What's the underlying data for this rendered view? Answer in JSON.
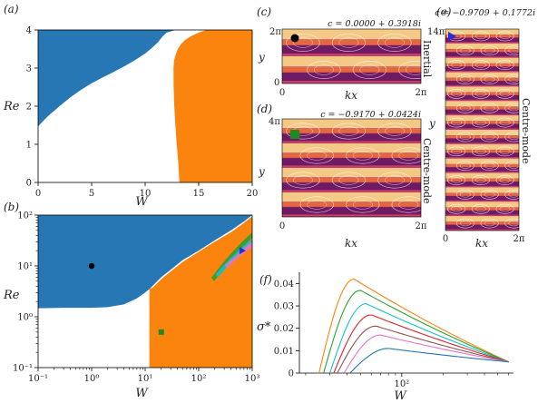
{
  "chart_data": [
    {
      "panel": "(a)",
      "type": "area",
      "xlabel": "W",
      "ylabel": "Re",
      "xlim": [
        0,
        20
      ],
      "ylim": [
        0,
        4
      ],
      "xticks": [
        "0",
        "5",
        "10",
        "15",
        "20"
      ],
      "yticks": [
        "0",
        "1",
        "2",
        "3",
        "4"
      ],
      "colors": {
        "region_blue": "#2677b4",
        "region_orange": "#fb840f",
        "stable": "#ffffff"
      },
      "blue_boundary": {
        "W": [
          0,
          0.5,
          1,
          2,
          3,
          4,
          5,
          6,
          7,
          8,
          9,
          10,
          10.6,
          11.2,
          11.6,
          12.0,
          12.8
        ],
        "Re": [
          1.47,
          1.62,
          1.76,
          2.0,
          2.23,
          2.43,
          2.6,
          2.75,
          2.89,
          3.04,
          3.2,
          3.38,
          3.52,
          3.68,
          3.82,
          3.93,
          4.0
        ]
      },
      "orange_boundary": {
        "W": [
          13.2,
          13.1,
          12.95,
          12.82,
          12.72,
          12.66,
          12.65,
          12.7,
          12.85,
          13.05,
          13.35,
          13.75,
          14.3,
          15.0,
          15.7
        ],
        "Re": [
          0,
          0.5,
          1.0,
          1.5,
          2.0,
          2.5,
          3.0,
          3.2,
          3.35,
          3.5,
          3.63,
          3.74,
          3.84,
          3.93,
          4.0
        ]
      }
    },
    {
      "panel": "(b)",
      "type": "area",
      "xlabel": "W",
      "ylabel": "Re",
      "xscale": "log",
      "yscale": "log",
      "xlim": [
        0.1,
        1000
      ],
      "ylim": [
        0.1,
        100
      ],
      "xticks": [
        "10⁻¹",
        "10⁰",
        "10¹",
        "10²",
        "10³"
      ],
      "yticks": [
        "10⁻¹",
        "10⁰",
        "10¹",
        "10²"
      ],
      "blue_boundary": {
        "W": [
          0.1,
          0.3,
          1,
          2,
          4,
          7,
          10,
          12,
          20,
          50,
          100,
          200,
          400,
          700,
          1000
        ],
        "Re": [
          1.47,
          1.5,
          1.5,
          1.55,
          1.75,
          2.3,
          3.0,
          3.5,
          6,
          13,
          20,
          32,
          50,
          75,
          100
        ]
      },
      "orange_boundary_W": 12.0,
      "orange_top_boundary": {
        "W": [
          12.0,
          14,
          20,
          50,
          100,
          200,
          400,
          700,
          1000
        ],
        "Re": [
          3.5,
          3.8,
          5.5,
          12,
          19,
          30,
          46,
          70,
          95
        ]
      },
      "markers": [
        {
          "name": "inertial-mode-point",
          "W": 1,
          "Re": 10,
          "shape": "circle",
          "color": "#000000"
        },
        {
          "name": "centre-mode-point-d",
          "W": 20,
          "Re": 0.5,
          "shape": "square",
          "color": "#1f8a1f"
        },
        {
          "name": "centre-mode-point-e",
          "W": 650,
          "Re": 20,
          "shape": "triangle",
          "color": "#2b2bd9"
        }
      ]
    },
    {
      "panel": "(c)",
      "type": "heatmap",
      "annotation": "c = 0.0000 + 0.3918i",
      "xlabel": "kx",
      "ylabel": "y",
      "xticks": [
        "0",
        "2π"
      ],
      "yticks": [
        "0",
        "2π"
      ],
      "side_label": "Inertial",
      "marker": "circle"
    },
    {
      "panel": "(d)",
      "type": "heatmap",
      "annotation": "c = −0.9170 + 0.0424i",
      "xlabel": "kx",
      "ylabel": "y",
      "xticks": [
        "0",
        "2π"
      ],
      "yticks": [
        "0",
        "4π"
      ],
      "side_label": "Centre-mode",
      "marker": "square"
    },
    {
      "panel": "(e)",
      "type": "heatmap",
      "annotation": "c = −0.9709 + 0.1772i",
      "xlabel": "kx",
      "ylabel": "y",
      "xticks": [
        "0",
        "2π"
      ],
      "yticks": [
        "0",
        "14π"
      ],
      "side_label": "Centre-mode",
      "marker": "triangle"
    },
    {
      "panel": "(f)",
      "type": "line",
      "xlabel": "W",
      "ylabel": "σ*",
      "xscale": "log",
      "xlim": [
        18,
        650
      ],
      "ylim": [
        0,
        0.045
      ],
      "yticks": [
        "0",
        "0.01",
        "0.02",
        "0.03",
        "0.04"
      ],
      "xticks": [
        "10²"
      ],
      "series": [
        {
          "color": "#fb840f",
          "peak_W": 45,
          "peak": 0.042,
          "start_W": 25
        },
        {
          "color": "#2ca02c",
          "peak_W": 50,
          "peak": 0.037,
          "start_W": 27
        },
        {
          "color": "#17becf",
          "peak_W": 55,
          "peak": 0.031,
          "start_W": 30
        },
        {
          "color": "#d62728",
          "peak_W": 60,
          "peak": 0.026,
          "start_W": 32
        },
        {
          "color": "#8c564b",
          "peak_W": 65,
          "peak": 0.021,
          "start_W": 34
        },
        {
          "color": "#e377c2",
          "peak_W": 70,
          "peak": 0.017,
          "start_W": 38
        },
        {
          "color": "#1f77b4",
          "peak_W": 80,
          "peak": 0.011,
          "start_W": 42
        }
      ],
      "end_W": 600,
      "end_value": 0.005
    }
  ]
}
